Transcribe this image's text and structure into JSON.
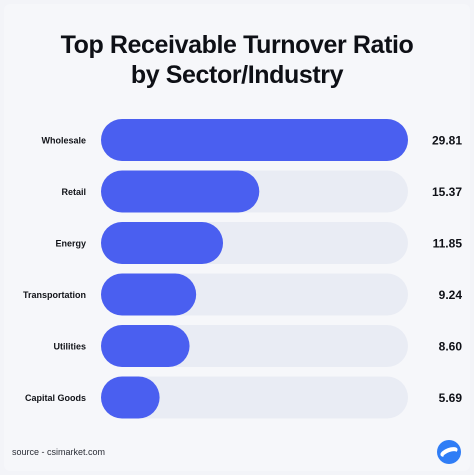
{
  "title_line1": "Top Receivable Turnover Ratio",
  "title_line2": "by Sector/Industry",
  "source": "source - csimarket.com",
  "logo_icon": "csimarket-logo-icon",
  "colors": {
    "bar": "#4a5ff0",
    "track": "#e9ecf4",
    "label": "#111318",
    "value": "#0e1016"
  },
  "chart_data": {
    "type": "bar",
    "orientation": "horizontal",
    "title": "Top Receivable Turnover Ratio by Sector/Industry",
    "categories": [
      "Wholesale",
      "Retail",
      "Energy",
      "Transportation",
      "Utilities",
      "Capital Goods"
    ],
    "values": [
      29.81,
      15.37,
      11.85,
      9.24,
      8.6,
      5.69
    ],
    "value_labels": [
      "29.81",
      "15.37",
      "11.85",
      "9.24",
      "8.60",
      "5.69"
    ],
    "xlim": [
      0,
      29.81
    ],
    "grid": false,
    "legend": "none"
  }
}
